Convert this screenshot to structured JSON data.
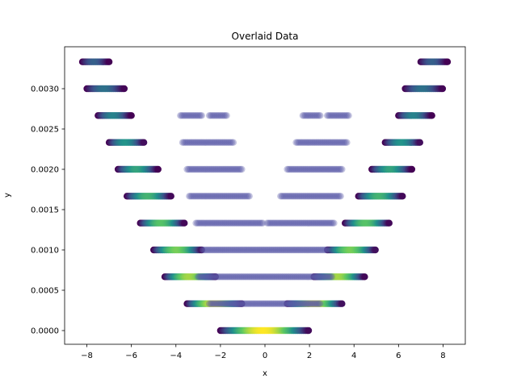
{
  "chart_data": {
    "type": "scatter",
    "title": "Overlaid Data",
    "xlabel": "x",
    "ylabel": "y",
    "xlim": [
      -9.0,
      9.0
    ],
    "ylim": [
      -0.00017,
      0.00352
    ],
    "x_ticks": [
      -8,
      -6,
      -4,
      -2,
      0,
      2,
      4,
      6,
      8
    ],
    "x_tick_labels": [
      "−8",
      "−6",
      "−4",
      "−2",
      "0",
      "2",
      "4",
      "6",
      "8"
    ],
    "y_ticks": [
      0.0,
      0.0005,
      0.001,
      0.0015,
      0.002,
      0.0025,
      0.003
    ],
    "y_tick_labels": [
      "0.0000",
      "0.0005",
      "0.0010",
      "0.0015",
      "0.0020",
      "0.0025",
      "0.0030"
    ],
    "grid": false,
    "series": [
      {
        "colormap": "viridis",
        "rows": [
          {
            "y": 0.0,
            "segments": [
              [
                -2.0,
                2.0
              ]
            ]
          },
          {
            "y": 0.000333,
            "segments": [
              [
                -3.5,
                -1.0
              ],
              [
                1.0,
                3.5
              ]
            ]
          },
          {
            "y": 0.000667,
            "segments": [
              [
                -4.5,
                -2.2
              ],
              [
                2.2,
                4.5
              ]
            ]
          },
          {
            "y": 0.001,
            "segments": [
              [
                -5.0,
                -2.8
              ],
              [
                2.8,
                5.0
              ]
            ]
          },
          {
            "y": 0.001333,
            "segments": [
              [
                -5.6,
                -3.6
              ],
              [
                3.6,
                5.6
              ]
            ]
          },
          {
            "y": 0.001667,
            "segments": [
              [
                -6.2,
                -4.2
              ],
              [
                4.2,
                6.2
              ]
            ]
          },
          {
            "y": 0.002,
            "segments": [
              [
                -6.6,
                -4.8
              ],
              [
                4.8,
                6.6
              ]
            ]
          },
          {
            "y": 0.002333,
            "segments": [
              [
                -7.0,
                -5.4
              ],
              [
                5.4,
                7.0
              ]
            ]
          },
          {
            "y": 0.002667,
            "segments": [
              [
                -7.5,
                -6.0
              ],
              [
                6.0,
                7.5
              ]
            ]
          },
          {
            "y": 0.003,
            "segments": [
              [
                -8.0,
                -6.3
              ],
              [
                6.3,
                8.0
              ]
            ]
          },
          {
            "y": 0.003333,
            "segments": [
              [
                -8.2,
                -7.0
              ],
              [
                7.0,
                8.2
              ]
            ]
          }
        ]
      },
      {
        "color": "#5b5ba8",
        "rows": [
          {
            "y": 0.000333,
            "segments": [
              [
                -2.5,
                2.5
              ]
            ]
          },
          {
            "y": 0.000667,
            "segments": [
              [
                -3.0,
                3.0
              ]
            ]
          },
          {
            "y": 0.001,
            "segments": [
              [
                -2.8,
                2.8
              ]
            ]
          },
          {
            "y": 0.001333,
            "segments": [
              [
                -3.1,
                -0.1
              ],
              [
                0.1,
                3.1
              ]
            ]
          },
          {
            "y": 0.001667,
            "segments": [
              [
                -3.4,
                -0.7
              ],
              [
                0.7,
                3.4
              ]
            ]
          },
          {
            "y": 0.002,
            "segments": [
              [
                -3.5,
                -1.0
              ],
              [
                1.0,
                3.5
              ]
            ]
          },
          {
            "y": 0.002333,
            "segments": [
              [
                -3.7,
                -1.4
              ],
              [
                1.4,
                3.7
              ]
            ]
          },
          {
            "y": 0.002667,
            "segments": [
              [
                -3.8,
                -2.8
              ],
              [
                -2.5,
                -1.7
              ],
              [
                1.7,
                2.5
              ],
              [
                2.8,
                3.8
              ]
            ]
          }
        ]
      }
    ]
  }
}
